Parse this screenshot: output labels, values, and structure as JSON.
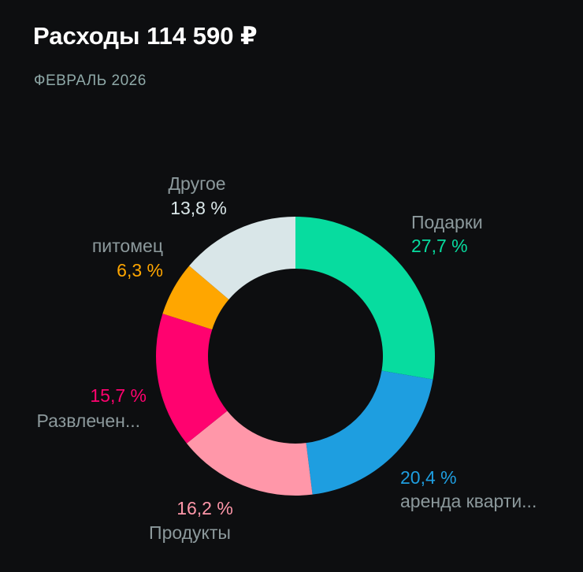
{
  "header": {
    "title": "Расходы 114 590 ₽",
    "period": "ФЕВРАЛЬ 2026"
  },
  "chart_data": {
    "type": "pie",
    "title": "Расходы 114 590 ₽",
    "subtitle": "ФЕВРАЛЬ 2026",
    "donut": true,
    "slices": [
      {
        "name": "Подарки",
        "pct_label": "27,7 %",
        "value": 27.7,
        "color": "#07dc9f"
      },
      {
        "name": "аренда кварти...",
        "pct_label": "20,4 %",
        "value": 20.4,
        "color": "#1e9ee0"
      },
      {
        "name": "Продукты",
        "pct_label": "16,2 %",
        "value": 16.2,
        "color": "#ff97a9"
      },
      {
        "name": "Развлечен...",
        "pct_label": "15,7 %",
        "value": 15.7,
        "color": "#ff026f"
      },
      {
        "name": "питомец",
        "pct_label": "6,3 %",
        "value": 6.3,
        "color": "#ffa600"
      },
      {
        "name": "Другое",
        "pct_label": "13,8 %",
        "value": 13.8,
        "color": "#d9e6e8"
      }
    ]
  }
}
